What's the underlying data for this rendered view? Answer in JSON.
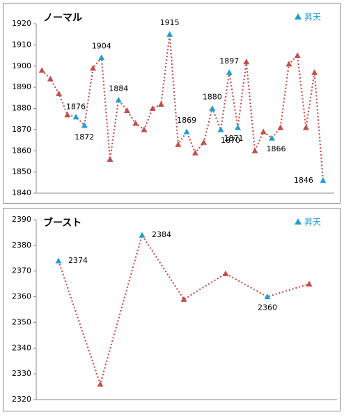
{
  "chart_data": [
    {
      "type": "line",
      "title": "ノーマル",
      "legend": {
        "label": "昇天",
        "color": "#1f9fd0"
      },
      "line_color": "#c0504d",
      "values": [
        1898,
        1894,
        1887,
        1877,
        1876,
        1872,
        1899,
        1904,
        1856,
        1884,
        1879,
        1873,
        1870,
        1880,
        1882,
        1915,
        1863,
        1869,
        1859,
        1864,
        1880,
        1870,
        1897,
        1871,
        1902,
        1860,
        1869,
        1866,
        1871,
        1901,
        1905,
        1871,
        1897,
        1846
      ],
      "colors": [
        "#c0504d",
        "#c0504d",
        "#c0504d",
        "#c0504d",
        "#1f9fd0",
        "#1f9fd0",
        "#c0504d",
        "#1f9fd0",
        "#c0504d",
        "#1f9fd0",
        "#c0504d",
        "#c0504d",
        "#c0504d",
        "#c0504d",
        "#c0504d",
        "#1f9fd0",
        "#c0504d",
        "#1f9fd0",
        "#c0504d",
        "#c0504d",
        "#1f9fd0",
        "#1f9fd0",
        "#1f9fd0",
        "#1f9fd0",
        "#c0504d",
        "#c0504d",
        "#c0504d",
        "#1f9fd0",
        "#c0504d",
        "#c0504d",
        "#c0504d",
        "#c0504d",
        "#c0504d",
        "#1f9fd0"
      ],
      "ylim": [
        1840,
        1920
      ],
      "yticks": [
        1840,
        1850,
        1860,
        1870,
        1880,
        1890,
        1900,
        1910,
        1920
      ]
    },
    {
      "type": "line",
      "title": "ブースト",
      "legend": {
        "label": "昇天",
        "color": "#1f9fd0"
      },
      "line_color": "#c0504d",
      "values": [
        2374,
        2326,
        2384,
        2359,
        2369,
        2360,
        2365
      ],
      "colors": [
        "#1f9fd0",
        "#c0504d",
        "#1f9fd0",
        "#c0504d",
        "#c0504d",
        "#1f9fd0",
        "#c0504d"
      ],
      "ylim": [
        2320,
        2390
      ],
      "yticks": [
        2320,
        2330,
        2340,
        2350,
        2360,
        2370,
        2380,
        2390
      ]
    }
  ]
}
